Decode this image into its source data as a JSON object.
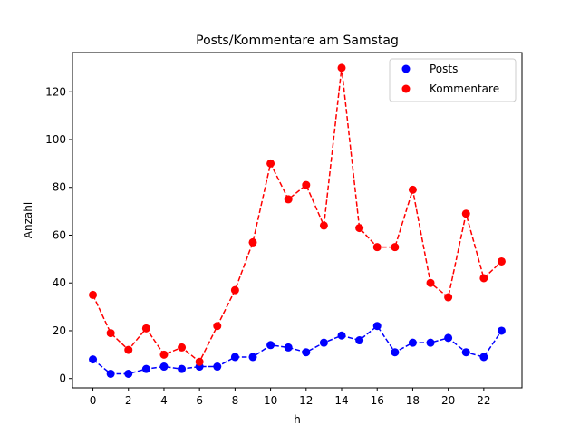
{
  "chart_data": {
    "type": "line",
    "title": "Posts/Kommentare am Samstag",
    "xlabel": "h",
    "ylabel": "Anzahl",
    "x": [
      0,
      1,
      2,
      3,
      4,
      5,
      6,
      7,
      8,
      9,
      10,
      11,
      12,
      13,
      14,
      15,
      16,
      17,
      18,
      19,
      20,
      21,
      22,
      23
    ],
    "xlim": [
      -1.15,
      24.15
    ],
    "ylim": [
      -3.9,
      136.4
    ],
    "xticks": [
      0,
      2,
      4,
      6,
      8,
      10,
      12,
      14,
      16,
      18,
      20,
      22
    ],
    "yticks": [
      0,
      20,
      40,
      60,
      80,
      100,
      120
    ],
    "grid": false,
    "legend_position": "top-right",
    "series": [
      {
        "name": "Posts",
        "color": "#0000ff",
        "values": [
          8,
          2,
          2,
          4,
          5,
          4,
          5,
          5,
          9,
          9,
          14,
          13,
          11,
          15,
          18,
          16,
          22,
          11,
          15,
          15,
          17,
          11,
          9,
          20
        ]
      },
      {
        "name": "Kommentare",
        "color": "#ff0000",
        "values": [
          35,
          19,
          12,
          21,
          10,
          13,
          7,
          22,
          37,
          57,
          90,
          75,
          81,
          64,
          130,
          63,
          55,
          55,
          79,
          40,
          34,
          69,
          42,
          49
        ]
      }
    ]
  }
}
